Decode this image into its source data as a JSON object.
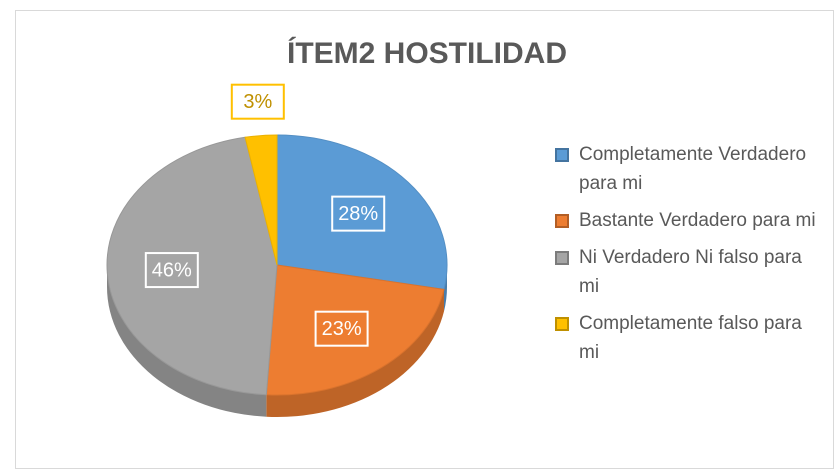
{
  "chart_data": {
    "type": "pie",
    "title": "ÍTEM2 HOSTILIDAD",
    "categories": [
      "Completamente Verdadero para mi",
      "Bastante Verdadero para mi",
      "Ni Verdadero Ni falso para mi",
      "Completamente falso para mi"
    ],
    "values": [
      28,
      23,
      46,
      3
    ],
    "value_labels": [
      "28%",
      "23%",
      "46%",
      "3%"
    ],
    "colors": [
      "#5b9bd5",
      "#ed7d31",
      "#a5a5a5",
      "#ffc000"
    ],
    "legend": "right"
  }
}
